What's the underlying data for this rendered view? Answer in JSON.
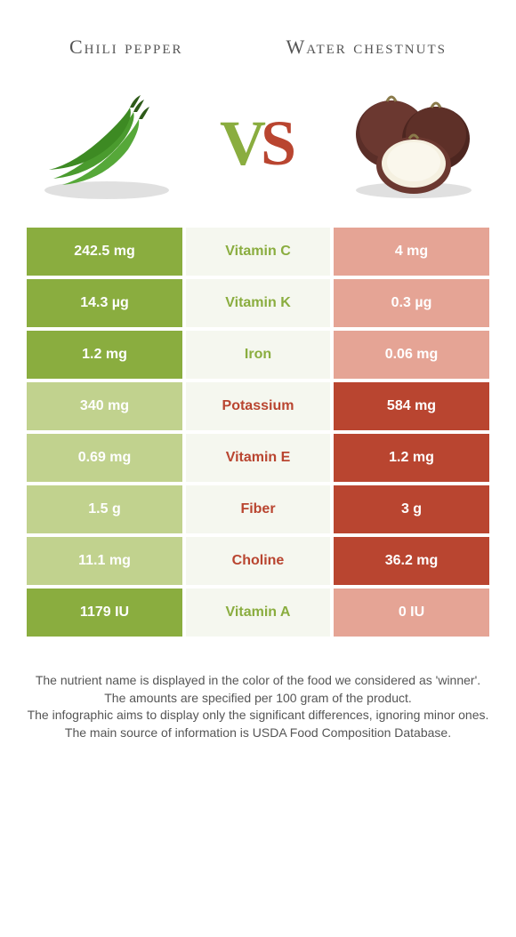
{
  "colors": {
    "left_winner": "#8aad3f",
    "left_loser": "#c1d28e",
    "right_winner": "#b94530",
    "right_loser": "#e5a495",
    "mid_bg": "#f5f7ef",
    "nutrient_left_win": "#8aad3f",
    "nutrient_right_win": "#b94530",
    "title_color": "#555555",
    "page_bg": "#ffffff"
  },
  "header": {
    "left_title": "Chili pepper",
    "right_title": "Water chestnuts",
    "vs_v": "V",
    "vs_s": "S"
  },
  "nutrients": [
    {
      "name": "Vitamin C",
      "left": "242.5 mg",
      "right": "4 mg",
      "winner": "left"
    },
    {
      "name": "Vitamin K",
      "left": "14.3 µg",
      "right": "0.3 µg",
      "winner": "left"
    },
    {
      "name": "Iron",
      "left": "1.2 mg",
      "right": "0.06 mg",
      "winner": "left"
    },
    {
      "name": "Potassium",
      "left": "340 mg",
      "right": "584 mg",
      "winner": "right"
    },
    {
      "name": "Vitamin E",
      "left": "0.69 mg",
      "right": "1.2 mg",
      "winner": "right"
    },
    {
      "name": "Fiber",
      "left": "1.5 g",
      "right": "3 g",
      "winner": "right"
    },
    {
      "name": "Choline",
      "left": "11.1 mg",
      "right": "36.2 mg",
      "winner": "right"
    },
    {
      "name": "Vitamin A",
      "left": "1179 IU",
      "right": "0 IU",
      "winner": "left"
    }
  ],
  "footer": {
    "line1": "The nutrient name is displayed in the color of the food we considered as 'winner'.",
    "line2": "The amounts are specified per 100 gram of the product.",
    "line3": "The infographic aims to display only the significant differences, ignoring minor ones.",
    "line4": "The main source of information is USDA Food Composition Database."
  },
  "images": {
    "left_alt": "chili-peppers",
    "right_alt": "water-chestnuts"
  }
}
